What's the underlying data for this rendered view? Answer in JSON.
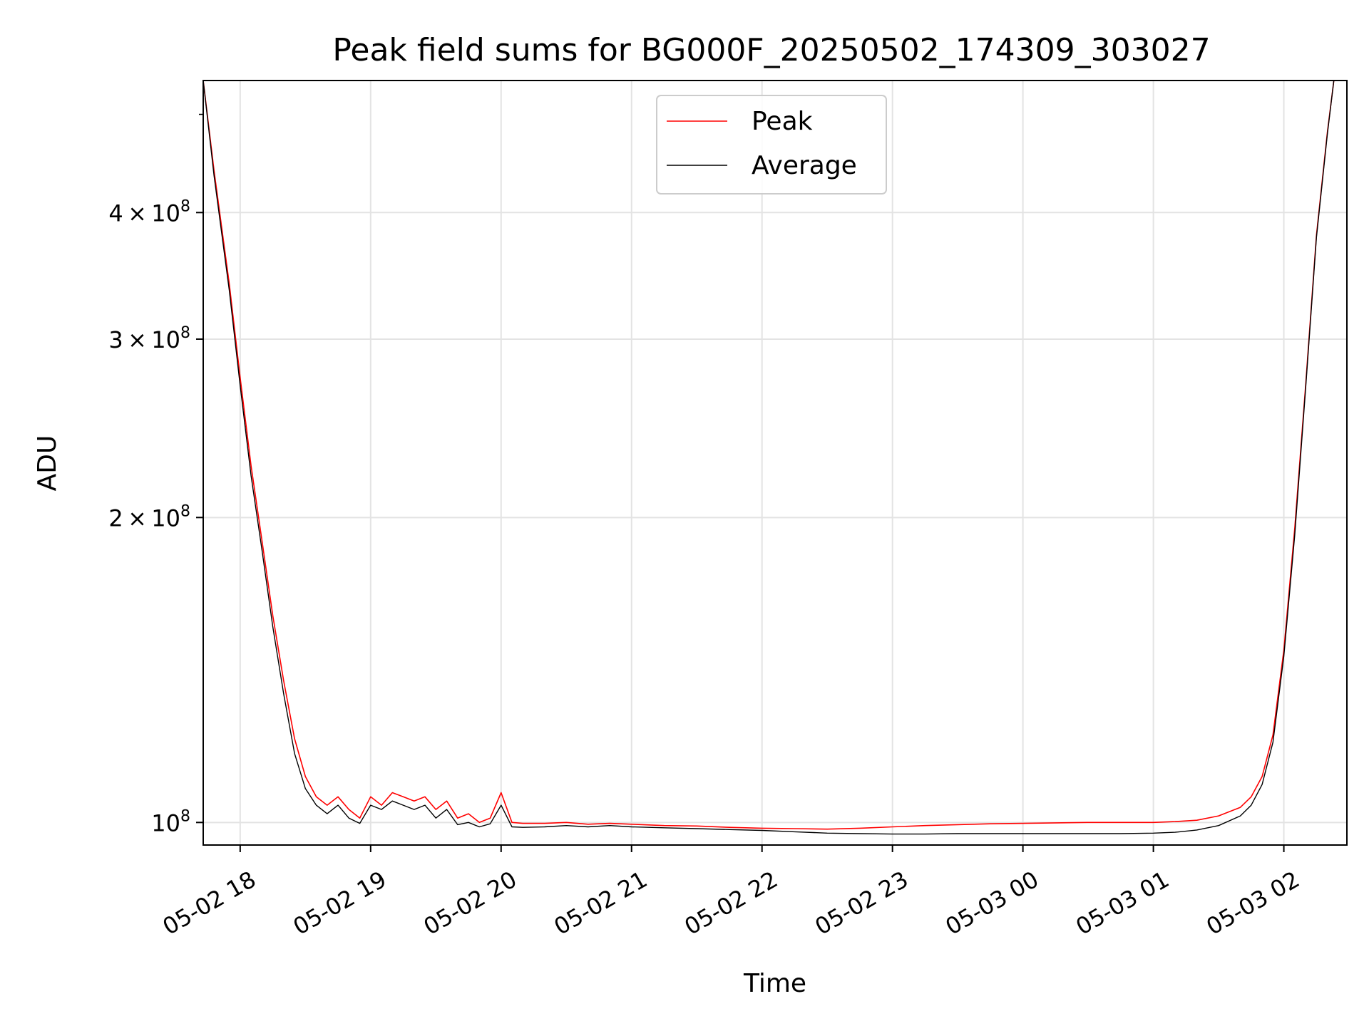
{
  "chart_data": {
    "type": "line",
    "title": "Peak field sums for BG000F_20250502_174309_303027",
    "xlabel": "Time",
    "ylabel": "ADU",
    "y_scale": "log",
    "ylim": [
      95000000,
      540000000
    ],
    "xlim": [
      "2025-05-02T17:43",
      "2025-05-03T02:29"
    ],
    "grid": true,
    "legend_position": "upper center",
    "x_ticks": [
      {
        "t": "2025-05-02T18:00",
        "label": "05-02 18"
      },
      {
        "t": "2025-05-02T19:00",
        "label": "05-02 19"
      },
      {
        "t": "2025-05-02T20:00",
        "label": "05-02 20"
      },
      {
        "t": "2025-05-02T21:00",
        "label": "05-02 21"
      },
      {
        "t": "2025-05-02T22:00",
        "label": "05-02 22"
      },
      {
        "t": "2025-05-02T23:00",
        "label": "05-02 23"
      },
      {
        "t": "2025-05-03T00:00",
        "label": "05-03 00"
      },
      {
        "t": "2025-05-03T01:00",
        "label": "05-03 01"
      },
      {
        "t": "2025-05-03T02:00",
        "label": "05-03 02"
      }
    ],
    "y_ticks": [
      {
        "value": 100000000,
        "mantissa": "",
        "exp": "8",
        "base": "10"
      },
      {
        "value": 200000000,
        "mantissa": "2",
        "exp": "8",
        "base": "10"
      },
      {
        "value": 300000000,
        "mantissa": "3",
        "exp": "8",
        "base": "10"
      },
      {
        "value": 400000000,
        "mantissa": "4",
        "exp": "8",
        "base": "10"
      }
    ],
    "series": [
      {
        "name": "Peak",
        "color": "#ff0000",
        "x": [
          "2025-05-02T17:43",
          "2025-05-02T17:48",
          "2025-05-02T17:55",
          "2025-05-02T18:00",
          "2025-05-02T18:05",
          "2025-05-02T18:10",
          "2025-05-02T18:15",
          "2025-05-02T18:20",
          "2025-05-02T18:25",
          "2025-05-02T18:30",
          "2025-05-02T18:35",
          "2025-05-02T18:40",
          "2025-05-02T18:45",
          "2025-05-02T18:50",
          "2025-05-02T18:55",
          "2025-05-02T19:00",
          "2025-05-02T19:05",
          "2025-05-02T19:10",
          "2025-05-02T19:15",
          "2025-05-02T19:20",
          "2025-05-02T19:25",
          "2025-05-02T19:30",
          "2025-05-02T19:35",
          "2025-05-02T19:40",
          "2025-05-02T19:45",
          "2025-05-02T19:50",
          "2025-05-02T19:55",
          "2025-05-02T20:00",
          "2025-05-02T20:05",
          "2025-05-02T20:10",
          "2025-05-02T20:20",
          "2025-05-02T20:30",
          "2025-05-02T20:40",
          "2025-05-02T20:50",
          "2025-05-02T21:00",
          "2025-05-02T21:15",
          "2025-05-02T21:30",
          "2025-05-02T21:45",
          "2025-05-02T22:00",
          "2025-05-02T22:15",
          "2025-05-02T22:30",
          "2025-05-02T22:45",
          "2025-05-02T23:00",
          "2025-05-02T23:15",
          "2025-05-02T23:30",
          "2025-05-02T23:45",
          "2025-05-03T00:00",
          "2025-05-03T00:15",
          "2025-05-03T00:30",
          "2025-05-03T00:45",
          "2025-05-03T01:00",
          "2025-05-03T01:10",
          "2025-05-03T01:20",
          "2025-05-03T01:30",
          "2025-05-03T01:40",
          "2025-05-03T01:45",
          "2025-05-03T01:50",
          "2025-05-03T01:55",
          "2025-05-03T02:00",
          "2025-05-03T02:05",
          "2025-05-03T02:10",
          "2025-05-03T02:15",
          "2025-05-03T02:20",
          "2025-05-03T02:23"
        ],
        "values": [
          540000000,
          440000000,
          340000000,
          275000000,
          225000000,
          190000000,
          160000000,
          138000000,
          121000000,
          111000000,
          106000000,
          104000000,
          106000000,
          103000000,
          101000000,
          106000000,
          104000000,
          107000000,
          106000000,
          105000000,
          106000000,
          103000000,
          105000000,
          101000000,
          102000000,
          100000000,
          101000000,
          107000000,
          100000000,
          99800000,
          99800000,
          100000000,
          99600000,
          99800000,
          99600000,
          99300000,
          99200000,
          98900000,
          98700000,
          98600000,
          98500000,
          98700000,
          99000000,
          99300000,
          99500000,
          99700000,
          99800000,
          99900000,
          100000000,
          100000000,
          100000000,
          100200000,
          100500000,
          101500000,
          103500000,
          106000000,
          111000000,
          122000000,
          148000000,
          195000000,
          270000000,
          380000000,
          480000000,
          540000000
        ]
      },
      {
        "name": "Average",
        "color": "#000000",
        "x": [
          "2025-05-02T17:43",
          "2025-05-02T17:48",
          "2025-05-02T17:55",
          "2025-05-02T18:00",
          "2025-05-02T18:05",
          "2025-05-02T18:10",
          "2025-05-02T18:15",
          "2025-05-02T18:20",
          "2025-05-02T18:25",
          "2025-05-02T18:30",
          "2025-05-02T18:35",
          "2025-05-02T18:40",
          "2025-05-02T18:45",
          "2025-05-02T18:50",
          "2025-05-02T18:55",
          "2025-05-02T19:00",
          "2025-05-02T19:05",
          "2025-05-02T19:10",
          "2025-05-02T19:15",
          "2025-05-02T19:20",
          "2025-05-02T19:25",
          "2025-05-02T19:30",
          "2025-05-02T19:35",
          "2025-05-02T19:40",
          "2025-05-02T19:45",
          "2025-05-02T19:50",
          "2025-05-02T19:55",
          "2025-05-02T20:00",
          "2025-05-02T20:05",
          "2025-05-02T20:10",
          "2025-05-02T20:20",
          "2025-05-02T20:30",
          "2025-05-02T20:40",
          "2025-05-02T20:50",
          "2025-05-02T21:00",
          "2025-05-02T21:15",
          "2025-05-02T21:30",
          "2025-05-02T21:45",
          "2025-05-02T22:00",
          "2025-05-02T22:15",
          "2025-05-02T22:30",
          "2025-05-02T22:45",
          "2025-05-02T23:00",
          "2025-05-02T23:15",
          "2025-05-02T23:30",
          "2025-05-02T23:45",
          "2025-05-03T00:00",
          "2025-05-03T00:15",
          "2025-05-03T00:30",
          "2025-05-03T00:45",
          "2025-05-03T01:00",
          "2025-05-03T01:10",
          "2025-05-03T01:20",
          "2025-05-03T01:30",
          "2025-05-03T01:40",
          "2025-05-03T01:45",
          "2025-05-03T01:50",
          "2025-05-03T01:55",
          "2025-05-03T02:00",
          "2025-05-03T02:05",
          "2025-05-03T02:10",
          "2025-05-03T02:15",
          "2025-05-03T02:20",
          "2025-05-03T02:23"
        ],
        "values": [
          540000000,
          435000000,
          335000000,
          270000000,
          220000000,
          186000000,
          156000000,
          134000000,
          117000000,
          108000000,
          104000000,
          102000000,
          104000000,
          101000000,
          99800000,
          104000000,
          103000000,
          105000000,
          104000000,
          103000000,
          104000000,
          101000000,
          103000000,
          99500000,
          100000000,
          99000000,
          99700000,
          104000000,
          99000000,
          98900000,
          99000000,
          99300000,
          99000000,
          99300000,
          99000000,
          98800000,
          98600000,
          98400000,
          98200000,
          97900000,
          97600000,
          97500000,
          97400000,
          97400000,
          97500000,
          97500000,
          97500000,
          97500000,
          97500000,
          97500000,
          97600000,
          97800000,
          98300000,
          99300000,
          101500000,
          104000000,
          109000000,
          120000000,
          146000000,
          192000000,
          268000000,
          378000000,
          478000000,
          540000000
        ]
      }
    ]
  }
}
